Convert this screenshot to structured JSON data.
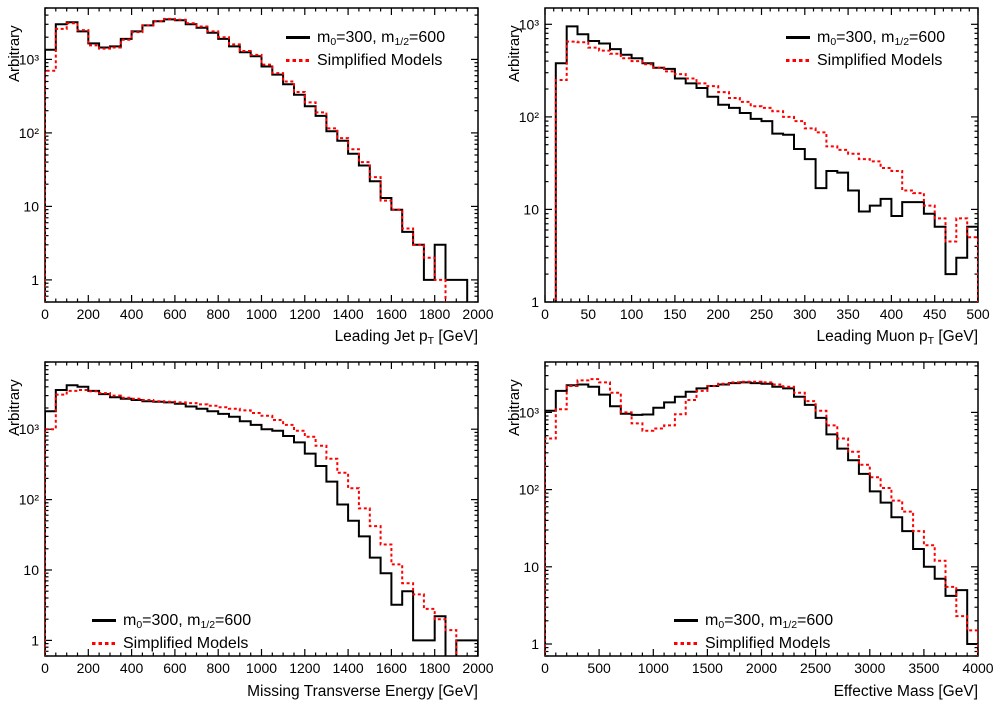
{
  "colors": {
    "series1": "#000000",
    "series2": "#ff0000",
    "axis": "#000000",
    "background": "#ffffff"
  },
  "legend": {
    "series1_full": "m0=300, m1/2=600",
    "s1_pre": "m",
    "s1_sub1": "0",
    "s1_mid": "=300, m",
    "s1_sub2": "1/2",
    "s1_post": "=600",
    "series2": "Simplified Models"
  },
  "axes": {
    "ylabel": "Arbitrary"
  },
  "chart_data": [
    {
      "type": "line",
      "subtype": "step-histogram",
      "yscale": "log",
      "title": "",
      "ylabel": "Arbitrary",
      "xlabel": "Leading Jet pT [GeV]",
      "xlabel_parts": {
        "pre": "Leading Jet p",
        "sub": "T",
        "post": " [GeV]"
      },
      "xlim": [
        0,
        2000
      ],
      "ylim": [
        0.5,
        5000
      ],
      "x_major_step": 200,
      "x_minor_step": 50,
      "x_tick_labels": [
        "0",
        "200",
        "400",
        "600",
        "800",
        "1000",
        "1200",
        "1400",
        "1600",
        "1800",
        "2000"
      ],
      "y_ticks": [
        {
          "v": 1,
          "label": "1"
        },
        {
          "v": 10,
          "label": "10"
        },
        {
          "v": 100,
          "label": "10²"
        },
        {
          "v": 1000,
          "label": "10³"
        }
      ],
      "bin_width": 50,
      "legend_position": "top-right",
      "grid": false,
      "series": [
        {
          "name": "m0=300, m1/2=600",
          "color": "#000000",
          "style": "solid",
          "values": [
            1350,
            3000,
            3200,
            2400,
            1650,
            1450,
            1500,
            1900,
            2400,
            2900,
            3300,
            3500,
            3400,
            3000,
            2700,
            2300,
            1900,
            1500,
            1250,
            1100,
            800,
            620,
            460,
            330,
            230,
            170,
            105,
            78,
            52,
            36,
            22,
            13,
            9,
            4.5,
            3,
            1,
            3,
            1,
            1,
            0.3
          ]
        },
        {
          "name": "Simplified Models",
          "color": "#ff0000",
          "style": "dotted",
          "values": [
            700,
            2600,
            3100,
            2500,
            1550,
            1400,
            1450,
            1850,
            2350,
            2900,
            3300,
            3550,
            3450,
            3100,
            2800,
            2400,
            2000,
            1600,
            1300,
            1150,
            850,
            650,
            500,
            360,
            260,
            190,
            115,
            85,
            60,
            40,
            25,
            12,
            9,
            5,
            3,
            2,
            1,
            0.3,
            0.3,
            0.3
          ]
        }
      ]
    },
    {
      "type": "line",
      "subtype": "step-histogram",
      "yscale": "log",
      "title": "",
      "ylabel": "Arbitrary",
      "xlabel": "Leading Muon pT [GeV]",
      "xlabel_parts": {
        "pre": "Leading Muon p",
        "sub": "T",
        "post": " [GeV]"
      },
      "xlim": [
        0,
        500
      ],
      "ylim": [
        1,
        1500
      ],
      "x_major_step": 50,
      "x_minor_step": 10,
      "x_tick_labels": [
        "0",
        "50",
        "100",
        "150",
        "200",
        "250",
        "300",
        "350",
        "400",
        "450",
        "500"
      ],
      "y_ticks": [
        {
          "v": 1,
          "label": "1"
        },
        {
          "v": 10,
          "label": "10"
        },
        {
          "v": 100,
          "label": "10²"
        },
        {
          "v": 1000,
          "label": "10³"
        }
      ],
      "bin_width": 12.5,
      "legend_position": "top-right",
      "grid": false,
      "series": [
        {
          "name": "m0=300, m1/2=600",
          "color": "#000000",
          "style": "solid",
          "values": [
            0,
            380,
            950,
            780,
            660,
            620,
            540,
            470,
            430,
            380,
            340,
            330,
            260,
            230,
            205,
            165,
            135,
            125,
            110,
            95,
            90,
            66,
            64,
            45,
            35,
            17,
            26,
            25,
            16,
            9.5,
            11,
            13,
            8.5,
            12,
            12,
            9,
            6.5,
            2,
            3,
            6.5
          ]
        },
        {
          "name": "Simplified Models",
          "color": "#ff0000",
          "style": "dotted",
          "values": [
            0,
            250,
            650,
            640,
            560,
            520,
            480,
            430,
            400,
            370,
            340,
            310,
            290,
            260,
            230,
            215,
            185,
            160,
            145,
            130,
            125,
            115,
            100,
            90,
            75,
            68,
            48,
            44,
            40,
            35,
            33,
            28,
            26,
            16,
            15,
            11,
            8,
            4.5,
            8,
            5
          ]
        }
      ]
    },
    {
      "type": "line",
      "subtype": "step-histogram",
      "yscale": "log",
      "title": "",
      "ylabel": "Arbitrary",
      "xlabel": "Missing Transverse Energy [GeV]",
      "xlabel_parts": {
        "pre": "Missing Transverse Energy [GeV]",
        "sub": "",
        "post": ""
      },
      "xlim": [
        0,
        2000
      ],
      "ylim": [
        0.6,
        9000
      ],
      "x_major_step": 200,
      "x_minor_step": 50,
      "x_tick_labels": [
        "0",
        "200",
        "400",
        "600",
        "800",
        "1000",
        "1200",
        "1400",
        "1600",
        "1800",
        "2000"
      ],
      "y_ticks": [
        {
          "v": 1,
          "label": "1"
        },
        {
          "v": 10,
          "label": "10"
        },
        {
          "v": 100,
          "label": "10²"
        },
        {
          "v": 1000,
          "label": "10³"
        }
      ],
      "bin_width": 50,
      "legend_position": "bottom-left",
      "grid": false,
      "series": [
        {
          "name": "m0=300, m1/2=600",
          "color": "#000000",
          "style": "solid",
          "values": [
            1800,
            3600,
            4200,
            4000,
            3500,
            3150,
            2850,
            2700,
            2600,
            2500,
            2450,
            2400,
            2300,
            2100,
            1950,
            1800,
            1650,
            1500,
            1300,
            1150,
            1000,
            950,
            800,
            650,
            450,
            300,
            180,
            85,
            50,
            30,
            15,
            9,
            3.2,
            5,
            1,
            1,
            2.2,
            0.45,
            1,
            1
          ]
        },
        {
          "name": "Simplified Models",
          "color": "#ff0000",
          "style": "dotted",
          "values": [
            1000,
            3100,
            3500,
            3600,
            3450,
            3250,
            3000,
            2800,
            2700,
            2600,
            2500,
            2450,
            2400,
            2350,
            2250,
            2150,
            2050,
            1950,
            1850,
            1700,
            1550,
            1350,
            1150,
            950,
            780,
            580,
            380,
            240,
            145,
            75,
            42,
            23,
            12,
            6.5,
            4.5,
            2.8,
            2,
            1.4,
            0.45,
            0.45
          ]
        }
      ]
    },
    {
      "type": "line",
      "subtype": "step-histogram",
      "yscale": "log",
      "title": "",
      "ylabel": "Arbitrary",
      "xlabel": "Effective Mass [GeV]",
      "xlabel_parts": {
        "pre": "Effective Mass [GeV]",
        "sub": "",
        "post": ""
      },
      "xlim": [
        0,
        4000
      ],
      "ylim": [
        0.7,
        4500
      ],
      "x_major_step": 500,
      "x_minor_step": 100,
      "x_tick_labels": [
        "0",
        "500",
        "1000",
        "1500",
        "2000",
        "2500",
        "3000",
        "3500",
        "4000"
      ],
      "y_ticks": [
        {
          "v": 1,
          "label": "1"
        },
        {
          "v": 10,
          "label": "10"
        },
        {
          "v": 100,
          "label": "10²"
        },
        {
          "v": 1000,
          "label": "10³"
        }
      ],
      "bin_width": 100,
      "legend_position": "bottom-center",
      "grid": false,
      "series": [
        {
          "name": "m0=300, m1/2=600",
          "color": "#000000",
          "style": "solid",
          "values": [
            1050,
            1900,
            2250,
            2300,
            2150,
            1700,
            1200,
            960,
            930,
            940,
            1150,
            1350,
            1600,
            1850,
            2050,
            2200,
            2300,
            2400,
            2450,
            2400,
            2350,
            2150,
            2050,
            1600,
            1250,
            850,
            520,
            340,
            240,
            160,
            95,
            68,
            44,
            29,
            17,
            10,
            7,
            4.2,
            5,
            1
          ]
        },
        {
          "name": "Simplified Models",
          "color": "#ff0000",
          "style": "dotted",
          "values": [
            460,
            1100,
            2200,
            2600,
            2700,
            2450,
            1800,
            1000,
            720,
            580,
            620,
            680,
            950,
            1450,
            1900,
            2200,
            2350,
            2450,
            2500,
            2500,
            2450,
            2300,
            2150,
            1800,
            1400,
            1050,
            680,
            460,
            310,
            210,
            145,
            105,
            72,
            52,
            29,
            19,
            12,
            5.5,
            2.3,
            1.5
          ]
        }
      ]
    }
  ]
}
